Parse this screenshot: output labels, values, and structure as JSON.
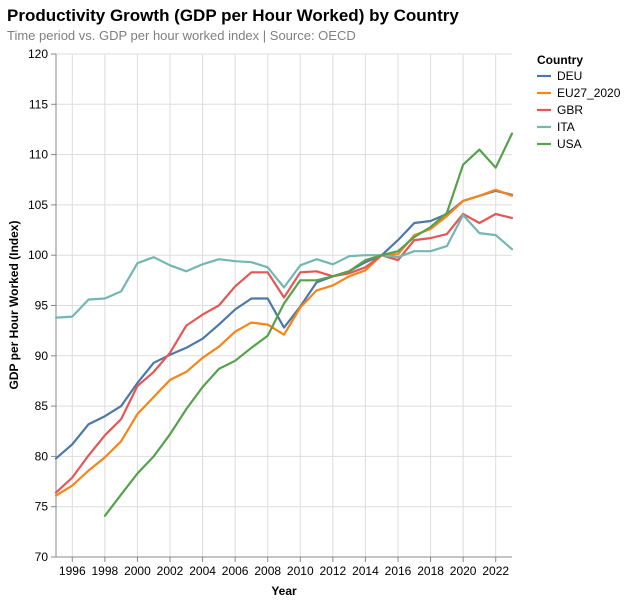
{
  "chart_data": {
    "type": "line",
    "title": "Productivity Growth (GDP per Hour Worked) by Country",
    "subtitle": "Time period vs. GDP per hour worked index | Source: OECD",
    "xlabel": "Year",
    "ylabel": "GDP per Hour Worked (Index)",
    "xlim": [
      1995,
      2023
    ],
    "ylim": [
      70,
      120
    ],
    "x_ticks": [
      1996,
      1998,
      2000,
      2002,
      2004,
      2006,
      2008,
      2010,
      2012,
      2014,
      2016,
      2018,
      2020,
      2022
    ],
    "y_ticks": [
      70,
      75,
      80,
      85,
      90,
      95,
      100,
      105,
      110,
      115,
      120
    ],
    "grid": true,
    "legend": {
      "title": "Country",
      "placement": "right"
    },
    "series": [
      {
        "name": "DEU",
        "color": "#4c78a8",
        "x": [
          1995,
          1996,
          1997,
          1998,
          1999,
          2000,
          2001,
          2002,
          2003,
          2004,
          2005,
          2006,
          2007,
          2008,
          2009,
          2010,
          2011,
          2012,
          2013,
          2014,
          2015,
          2016,
          2017,
          2018,
          2019,
          2020,
          2021,
          2022,
          2023
        ],
        "values": [
          79.8,
          81.2,
          83.2,
          84.0,
          85.0,
          87.3,
          89.3,
          90.1,
          90.8,
          91.7,
          93.1,
          94.6,
          95.7,
          95.7,
          92.8,
          94.9,
          97.3,
          97.9,
          98.4,
          99.3,
          100.0,
          101.5,
          103.2,
          103.4,
          104.1,
          105.4,
          105.9,
          106.4,
          106.0
        ]
      },
      {
        "name": "EU27_2020",
        "color": "#f58518",
        "x": [
          1995,
          1996,
          1997,
          1998,
          1999,
          2000,
          2001,
          2002,
          2003,
          2004,
          2005,
          2006,
          2007,
          2008,
          2009,
          2010,
          2011,
          2012,
          2013,
          2014,
          2015,
          2016,
          2017,
          2018,
          2019,
          2020,
          2021,
          2022,
          2023
        ],
        "values": [
          76.1,
          77.1,
          78.6,
          79.9,
          81.5,
          84.2,
          85.9,
          87.6,
          88.4,
          89.8,
          90.9,
          92.4,
          93.3,
          93.1,
          92.1,
          94.8,
          96.5,
          97.0,
          97.9,
          98.5,
          100.0,
          100.1,
          102.0,
          102.6,
          103.9,
          105.4,
          105.9,
          106.5,
          105.9
        ]
      },
      {
        "name": "GBR",
        "color": "#e45756",
        "x": [
          1995,
          1996,
          1997,
          1998,
          1999,
          2000,
          2001,
          2002,
          2003,
          2004,
          2005,
          2006,
          2007,
          2008,
          2009,
          2010,
          2011,
          2012,
          2013,
          2014,
          2015,
          2016,
          2017,
          2018,
          2019,
          2020,
          2021,
          2022,
          2023
        ],
        "values": [
          76.4,
          77.9,
          80.1,
          82.1,
          83.7,
          87.0,
          88.4,
          90.3,
          93.0,
          94.1,
          95.0,
          96.9,
          98.3,
          98.3,
          95.8,
          98.3,
          98.4,
          97.9,
          98.2,
          98.8,
          100.0,
          99.5,
          101.5,
          101.7,
          102.1,
          104.1,
          103.2,
          104.1,
          103.7
        ]
      },
      {
        "name": "ITA",
        "color": "#72b7b2",
        "x": [
          1995,
          1996,
          1997,
          1998,
          1999,
          2000,
          2001,
          2002,
          2003,
          2004,
          2005,
          2006,
          2007,
          2008,
          2009,
          2010,
          2011,
          2012,
          2013,
          2014,
          2015,
          2016,
          2017,
          2018,
          2019,
          2020,
          2021,
          2022,
          2023
        ],
        "values": [
          93.8,
          93.9,
          95.6,
          95.7,
          96.4,
          99.2,
          99.8,
          99.0,
          98.4,
          99.1,
          99.6,
          99.4,
          99.3,
          98.8,
          96.8,
          99.0,
          99.6,
          99.1,
          99.9,
          100.0,
          100.0,
          99.8,
          100.4,
          100.4,
          100.9,
          104.0,
          102.2,
          102.0,
          100.6
        ]
      },
      {
        "name": "USA",
        "color": "#54a24b",
        "x": [
          1998,
          1999,
          2000,
          2001,
          2002,
          2003,
          2004,
          2005,
          2006,
          2007,
          2008,
          2009,
          2010,
          2011,
          2012,
          2013,
          2014,
          2015,
          2016,
          2017,
          2018,
          2019,
          2020,
          2021,
          2022,
          2023
        ],
        "values": [
          74.1,
          76.2,
          78.3,
          80.0,
          82.2,
          84.7,
          86.9,
          88.7,
          89.5,
          90.8,
          92.0,
          95.2,
          97.5,
          97.5,
          97.9,
          98.4,
          99.5,
          100.0,
          100.4,
          101.8,
          102.8,
          104.2,
          109.0,
          110.5,
          108.7,
          112.1
        ]
      }
    ]
  }
}
